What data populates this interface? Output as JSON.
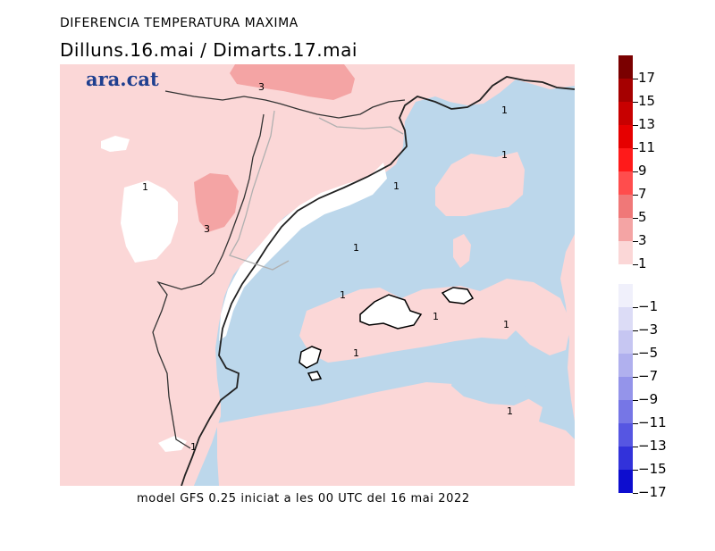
{
  "header": {
    "title": "DIFERENCIA TEMPERATURA MAXIMA",
    "subtitle": "Dilluns.16.mai  /  Dimarts.17.mai"
  },
  "logo": {
    "text": "ara.cat"
  },
  "footer": {
    "text": "model GFS 0.25 iniciat a les 00 UTC del 16 mai 2022"
  },
  "map": {
    "contour_labels": [
      "3",
      "1",
      "1",
      "1",
      "3",
      "1",
      "1",
      "1",
      "1",
      "1",
      "1",
      "1",
      "1"
    ],
    "colors": {
      "land_warm_1": "#fbd7d7",
      "warm_3": "#f4a4a4",
      "sea_cool": "#bcd7eb",
      "neutral": "#ffffff",
      "border": "#333333",
      "internal_border": "#b0b0b0"
    }
  },
  "legend": {
    "warm": [
      {
        "label": "17",
        "color": "#7a0000"
      },
      {
        "label": "15",
        "color": "#a50000"
      },
      {
        "label": "13",
        "color": "#c80000"
      },
      {
        "label": "11",
        "color": "#e60000"
      },
      {
        "label": "9",
        "color": "#ff1a1a"
      },
      {
        "label": "7",
        "color": "#ff4d4d"
      },
      {
        "label": "5",
        "color": "#f07878"
      },
      {
        "label": "3",
        "color": "#f4a4a4"
      },
      {
        "label": "1",
        "color": "#fbd7d7"
      }
    ],
    "cool": [
      {
        "label": "−1",
        "color": "#f0f0fb"
      },
      {
        "label": "−3",
        "color": "#dcdcf6"
      },
      {
        "label": "−5",
        "color": "#c6c6f2"
      },
      {
        "label": "−7",
        "color": "#b0b0ee"
      },
      {
        "label": "−9",
        "color": "#9494ea"
      },
      {
        "label": "−11",
        "color": "#7676e6"
      },
      {
        "label": "−13",
        "color": "#5656e2"
      },
      {
        "label": "−15",
        "color": "#3232da"
      },
      {
        "label": "−17",
        "color": "#0d0dcf"
      }
    ]
  }
}
